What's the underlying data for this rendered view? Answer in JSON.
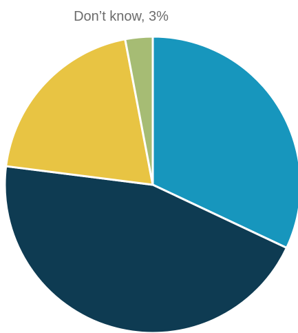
{
  "chart_data": {
    "type": "pie",
    "values": [
      32,
      45,
      20,
      3
    ],
    "colors": [
      "#1796bd",
      "#0e3b52",
      "#e8c443",
      "#a6bc74"
    ],
    "slice_labels": [
      "",
      "",
      "",
      "Don’t know, 3%"
    ]
  }
}
